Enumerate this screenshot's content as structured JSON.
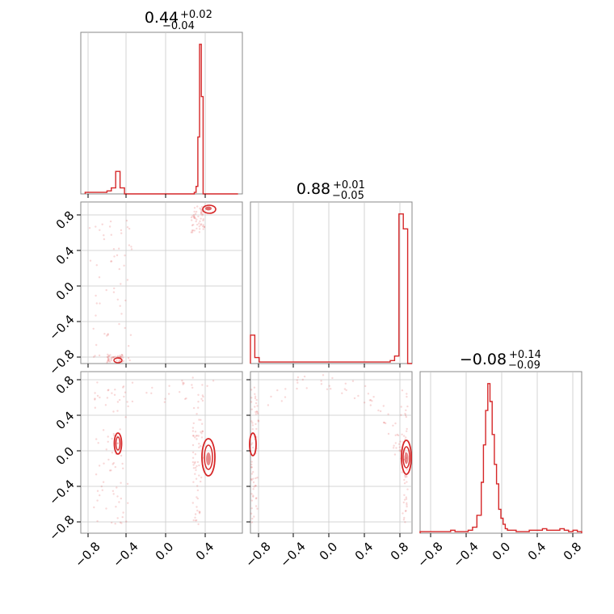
{
  "figure": {
    "type": "corner_plot",
    "accent_color": "#d62728",
    "grid_color": "#c8c8c8",
    "frame_color": "#888888"
  },
  "chart_data": [
    {
      "type": "histogram",
      "panel": "p00",
      "title": {
        "value": "0.44",
        "plus": "+0.02",
        "minus": "−0.04"
      },
      "xlim": [
        -0.9,
        0.95
      ],
      "grid": true,
      "bin_edges": [
        -0.85,
        -0.8,
        -0.75,
        -0.7,
        -0.65,
        -0.6,
        -0.55,
        -0.5,
        -0.45,
        -0.4,
        -0.35,
        -0.3,
        -0.25,
        -0.2,
        -0.15,
        -0.1,
        -0.05,
        0.0,
        0.05,
        0.1,
        0.15,
        0.2,
        0.25,
        0.3,
        0.35,
        0.4,
        0.42,
        0.44,
        0.46,
        0.48,
        0.5,
        0.55,
        0.6,
        0.65,
        0.7,
        0.75,
        0.8,
        0.85,
        0.9
      ],
      "counts": [
        0.01,
        0.01,
        0.01,
        0.01,
        0.01,
        0.02,
        0.04,
        0.15,
        0.04,
        0,
        0,
        0,
        0,
        0,
        0,
        0,
        0,
        0,
        0,
        0,
        0,
        0,
        0,
        0,
        0,
        0.01,
        0.05,
        0.38,
        1.0,
        0.65,
        0,
        0,
        0,
        0,
        0,
        0,
        0,
        0
      ],
      "ylim": [
        0,
        1.08
      ]
    },
    {
      "type": "scatter_contour",
      "panel": "p10",
      "xlim": [
        -0.9,
        0.95
      ],
      "ylim": [
        -0.9,
        0.95
      ],
      "yticks": [
        -0.8,
        -0.4,
        0.0,
        0.4,
        0.8
      ],
      "ytick_labels": [
        "−0.8",
        "−0.4",
        "0.0",
        "0.4",
        "0.8"
      ],
      "density_cores": [
        {
          "x": 0.44,
          "y": 0.88
        },
        {
          "x": -0.5,
          "y": -0.86
        }
      ]
    },
    {
      "type": "histogram",
      "panel": "p11",
      "title": {
        "value": "0.88",
        "plus": "+0.01",
        "minus": "−0.05"
      },
      "xlim": [
        -0.9,
        0.95
      ],
      "grid": true,
      "bin_edges": [
        -0.9,
        -0.85,
        -0.8,
        -0.75,
        -0.7,
        -0.65,
        -0.6,
        -0.55,
        -0.5,
        -0.45,
        -0.4,
        -0.35,
        -0.3,
        -0.25,
        -0.2,
        -0.15,
        -0.1,
        -0.05,
        0.0,
        0.05,
        0.1,
        0.15,
        0.2,
        0.25,
        0.3,
        0.35,
        0.4,
        0.45,
        0.5,
        0.55,
        0.6,
        0.65,
        0.7,
        0.75,
        0.8,
        0.85,
        0.9,
        0.95
      ],
      "counts": [
        0.19,
        0.04,
        0.01,
        0.01,
        0.01,
        0.01,
        0.01,
        0.01,
        0.01,
        0.01,
        0.01,
        0.01,
        0.01,
        0.01,
        0.01,
        0.01,
        0.01,
        0.01,
        0.01,
        0.01,
        0.01,
        0.01,
        0.01,
        0.01,
        0.01,
        0.01,
        0.01,
        0.01,
        0.01,
        0.01,
        0.01,
        0.01,
        0.02,
        0.05,
        1.0,
        0.9,
        0.0
      ],
      "ylim": [
        0,
        1.08
      ]
    },
    {
      "type": "scatter_contour",
      "panel": "p20",
      "xlim": [
        -0.9,
        0.95
      ],
      "ylim": [
        -0.9,
        0.95
      ],
      "yticks": [
        -0.8,
        -0.4,
        0.0,
        0.4,
        0.8
      ],
      "ytick_labels": [
        "−0.8",
        "−0.4",
        "0.0",
        "0.4",
        "0.8"
      ],
      "xticks": [
        -0.8,
        -0.4,
        0.0,
        0.4
      ],
      "xtick_labels": [
        "−0.8",
        "−0.4",
        "0.0",
        "0.4"
      ],
      "density_cores": [
        {
          "x": -0.5,
          "y": 0.1
        },
        {
          "x": 0.44,
          "y": -0.08
        }
      ]
    },
    {
      "type": "scatter_contour",
      "panel": "p21",
      "xlim": [
        -0.9,
        0.95
      ],
      "ylim": [
        -0.9,
        0.95
      ],
      "xticks": [
        -0.8,
        -0.4,
        0.0,
        0.4,
        0.8
      ],
      "xtick_labels": [
        "−0.8",
        "−0.4",
        "0.0",
        "0.4",
        "0.8"
      ],
      "density_cores": [
        {
          "x": -0.86,
          "y": 0.05
        },
        {
          "x": 0.88,
          "y": -0.08
        }
      ]
    },
    {
      "type": "histogram",
      "panel": "p22",
      "title": {
        "value": "−0.08",
        "plus": "+0.14",
        "minus": "−0.09"
      },
      "xlim": [
        -0.9,
        0.95
      ],
      "grid": true,
      "xticks": [
        -0.8,
        -0.4,
        0.0,
        0.4,
        0.8
      ],
      "xtick_labels": [
        "−0.8",
        "−0.4",
        "0.0",
        "0.4",
        "0.8"
      ],
      "bin_edges": [
        -0.9,
        -0.85,
        -0.8,
        -0.75,
        -0.7,
        -0.65,
        -0.6,
        -0.55,
        -0.5,
        -0.45,
        -0.4,
        -0.35,
        -0.3,
        -0.25,
        -0.2,
        -0.175,
        -0.15,
        -0.125,
        -0.1,
        -0.075,
        -0.05,
        -0.025,
        0.0,
        0.025,
        0.05,
        0.075,
        0.1,
        0.15,
        0.2,
        0.25,
        0.3,
        0.35,
        0.4,
        0.45,
        0.5,
        0.55,
        0.6,
        0.65,
        0.7,
        0.75,
        0.8,
        0.85,
        0.9,
        0.95
      ],
      "counts": [
        0.01,
        0.01,
        0.01,
        0.01,
        0.01,
        0.01,
        0.01,
        0.02,
        0.01,
        0.01,
        0.01,
        0.02,
        0.04,
        0.12,
        0.34,
        0.59,
        0.82,
        1.0,
        0.88,
        0.66,
        0.46,
        0.33,
        0.16,
        0.1,
        0.06,
        0.03,
        0.02,
        0.02,
        0.01,
        0.01,
        0.01,
        0.02,
        0.02,
        0.02,
        0.03,
        0.02,
        0.02,
        0.02,
        0.03,
        0.02,
        0.01,
        0.02,
        0.01
      ],
      "ylim": [
        0,
        1.08
      ]
    }
  ]
}
